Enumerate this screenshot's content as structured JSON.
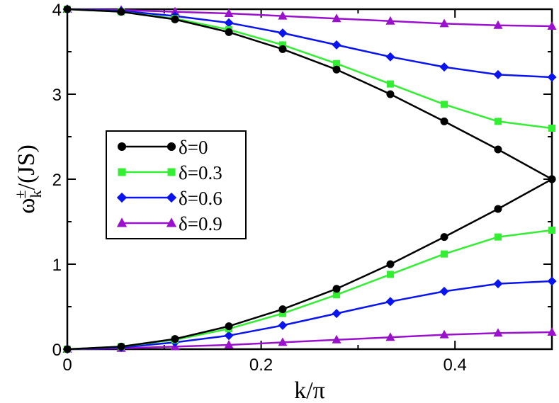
{
  "chart_data": {
    "type": "line",
    "xlabel": "k/π",
    "ylabel_main": "ω",
    "ylabel_sub": "k",
    "ylabel_sup": "±",
    "ylabel_rest": "/(JS)",
    "xlim": [
      0,
      0.5
    ],
    "ylim": [
      0,
      4
    ],
    "xticks": [
      0,
      0.2,
      0.4
    ],
    "xtick_labels": [
      "0",
      "0.2",
      "0.4"
    ],
    "yticks": [
      0,
      1,
      2,
      3,
      4
    ],
    "ytick_labels": [
      "0",
      "1",
      "2",
      "3",
      "4"
    ],
    "grid": false,
    "legend_position": "center-left",
    "x": [
      0,
      0.0556,
      0.1111,
      0.1667,
      0.2222,
      0.2778,
      0.3333,
      0.3889,
      0.4444,
      0.5
    ],
    "series": [
      {
        "name": "δ=0",
        "color": "#000000",
        "marker": "circle",
        "upper": [
          4.0,
          3.97,
          3.88,
          3.73,
          3.53,
          3.29,
          3.0,
          2.68,
          2.35,
          2.0
        ],
        "lower": [
          0.0,
          0.03,
          0.12,
          0.27,
          0.47,
          0.71,
          1.0,
          1.32,
          1.65,
          2.0
        ]
      },
      {
        "name": "δ=0.3",
        "color": "#33ee33",
        "marker": "square",
        "upper": [
          4.0,
          3.97,
          3.89,
          3.76,
          3.58,
          3.36,
          3.12,
          2.88,
          2.68,
          2.6
        ],
        "lower": [
          0.0,
          0.03,
          0.11,
          0.24,
          0.42,
          0.64,
          0.88,
          1.12,
          1.32,
          1.4
        ]
      },
      {
        "name": "δ=0.6",
        "color": "#0a14ee",
        "marker": "diamond",
        "upper": [
          4.0,
          3.98,
          3.92,
          3.84,
          3.72,
          3.58,
          3.44,
          3.32,
          3.23,
          3.2
        ],
        "lower": [
          0.0,
          0.02,
          0.08,
          0.16,
          0.28,
          0.42,
          0.56,
          0.68,
          0.77,
          0.8
        ]
      },
      {
        "name": "δ=0.9",
        "color": "#9a11cc",
        "marker": "triangle",
        "upper": [
          4.0,
          3.99,
          3.97,
          3.95,
          3.92,
          3.89,
          3.86,
          3.83,
          3.81,
          3.8
        ],
        "lower": [
          0.0,
          0.01,
          0.03,
          0.05,
          0.08,
          0.11,
          0.14,
          0.17,
          0.19,
          0.2
        ]
      }
    ]
  }
}
